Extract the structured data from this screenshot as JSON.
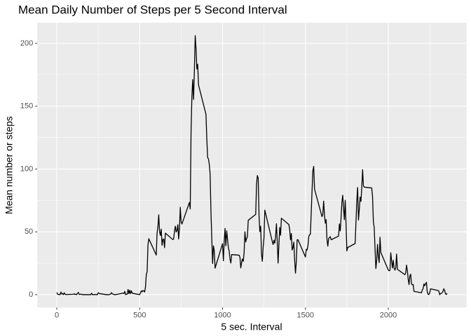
{
  "chart_data": {
    "type": "line",
    "title": "Mean Daily Number of Steps per 5 Second Interval",
    "xlabel": "5 sec. Interval",
    "ylabel": "Mean number or steps",
    "xlim": [
      -117.75,
      2472.75
    ],
    "xticks": [
      0,
      500,
      1000,
      1500,
      2000
    ],
    "ylim": [
      -10.3,
      216.5
    ],
    "yticks": [
      0,
      50,
      100,
      150,
      200
    ],
    "grid": true,
    "x": [
      0,
      5,
      10,
      15,
      20,
      25,
      30,
      35,
      40,
      45,
      50,
      55,
      100,
      105,
      110,
      115,
      120,
      125,
      130,
      135,
      140,
      145,
      150,
      155,
      200,
      205,
      210,
      215,
      220,
      225,
      230,
      235,
      240,
      245,
      250,
      255,
      300,
      305,
      310,
      315,
      320,
      325,
      330,
      335,
      340,
      345,
      350,
      355,
      400,
      405,
      410,
      415,
      420,
      425,
      430,
      435,
      440,
      445,
      450,
      455,
      500,
      505,
      510,
      515,
      520,
      525,
      530,
      535,
      540,
      545,
      550,
      555,
      600,
      605,
      610,
      615,
      620,
      625,
      630,
      635,
      640,
      645,
      650,
      655,
      700,
      705,
      710,
      715,
      720,
      725,
      730,
      735,
      740,
      745,
      750,
      755,
      800,
      805,
      810,
      815,
      820,
      825,
      830,
      835,
      840,
      845,
      850,
      855,
      900,
      905,
      910,
      915,
      920,
      925,
      930,
      935,
      940,
      945,
      950,
      955,
      1000,
      1005,
      1010,
      1015,
      1020,
      1025,
      1030,
      1035,
      1040,
      1045,
      1050,
      1055,
      1100,
      1105,
      1110,
      1115,
      1120,
      1125,
      1130,
      1135,
      1140,
      1145,
      1150,
      1155,
      1200,
      1205,
      1210,
      1215,
      1220,
      1225,
      1230,
      1235,
      1240,
      1245,
      1250,
      1255,
      1300,
      1305,
      1310,
      1315,
      1320,
      1325,
      1330,
      1335,
      1340,
      1345,
      1350,
      1355,
      1400,
      1405,
      1410,
      1415,
      1420,
      1425,
      1430,
      1435,
      1440,
      1445,
      1450,
      1455,
      1500,
      1505,
      1510,
      1515,
      1520,
      1525,
      1530,
      1535,
      1540,
      1545,
      1550,
      1555,
      1600,
      1605,
      1610,
      1615,
      1620,
      1625,
      1630,
      1635,
      1640,
      1645,
      1650,
      1655,
      1700,
      1705,
      1710,
      1715,
      1720,
      1725,
      1730,
      1735,
      1740,
      1745,
      1750,
      1755,
      1800,
      1805,
      1810,
      1815,
      1820,
      1825,
      1830,
      1835,
      1840,
      1845,
      1850,
      1855,
      1900,
      1905,
      1910,
      1915,
      1920,
      1925,
      1930,
      1935,
      1940,
      1945,
      1950,
      1955,
      2000,
      2005,
      2010,
      2015,
      2020,
      2025,
      2030,
      2035,
      2040,
      2045,
      2050,
      2055,
      2100,
      2105,
      2110,
      2115,
      2120,
      2125,
      2130,
      2135,
      2140,
      2145,
      2150,
      2155,
      2200,
      2205,
      2210,
      2215,
      2220,
      2225,
      2230,
      2235,
      2240,
      2245,
      2250,
      2255,
      2300,
      2305,
      2310,
      2315,
      2320,
      2325,
      2330,
      2335,
      2340,
      2345,
      2350,
      2355
    ],
    "series": [
      {
        "color": "#000000",
        "values": [
          1.7,
          0.3,
          0.1,
          0.2,
          0.1,
          2.1,
          0.5,
          0.9,
          0,
          1.5,
          0.3,
          0.1,
          0.3,
          0.7,
          0.2,
          0.3,
          0,
          1.1,
          1.8,
          0.2,
          0.2,
          0.4,
          0.3,
          0,
          0,
          0,
          1.1,
          0,
          0,
          0.1,
          0,
          0.2,
          0,
          0,
          1.5,
          0.9,
          0,
          0,
          0,
          0,
          0.2,
          0.6,
          1.6,
          0.6,
          0.5,
          0.1,
          0,
          0,
          1.2,
          0.9,
          2.6,
          0,
          0.3,
          0.4,
          4.1,
          0.7,
          3.5,
          0.8,
          3.1,
          1.1,
          0,
          1.6,
          3,
          2.2,
          3.3,
          3,
          2.1,
          6.1,
          16,
          18.3,
          39.5,
          44.5,
          31.5,
          49.3,
          53.8,
          63.5,
          50,
          47.1,
          52.2,
          39.3,
          44,
          44.2,
          37.4,
          49,
          43.8,
          44.4,
          50.5,
          54.5,
          49.9,
          51,
          55.7,
          44.3,
          52.3,
          69.5,
          57.8,
          56.2,
          73.4,
          68.2,
          129.4,
          157.5,
          171.2,
          155.4,
          177.3,
          206.2,
          195.9,
          179.6,
          183.4,
          167,
          143.5,
          124,
          109.1,
          108.1,
          103.7,
          95.97,
          66.2,
          45.2,
          24.8,
          38.8,
          35,
          21.1,
          40.6,
          27,
          42.4,
          52.7,
          38.9,
          50.8,
          44.3,
          37.4,
          34.7,
          28.3,
          25.1,
          31.9,
          31.4,
          29.7,
          21.3,
          25.5,
          28.4,
          26.5,
          33.4,
          50,
          42,
          44.6,
          46,
          59.2,
          63.9,
          87.7,
          94.8,
          92.8,
          63.4,
          50.2,
          54.5,
          32.4,
          26.5,
          37.7,
          45.1,
          67.3,
          42.3,
          39.9,
          43.3,
          40.98,
          46.2,
          56.4,
          42.8,
          25.1,
          39.97,
          53.5,
          47.3,
          60.8,
          55.8,
          51.96,
          43.6,
          48.7,
          35.5,
          37.5,
          41.8,
          27.5,
          17.1,
          26.1,
          43.6,
          43.8,
          30,
          36.1,
          35.5,
          38.8,
          45.96,
          47.8,
          48.1,
          65.3,
          82.9,
          98.7,
          102.1,
          83.96,
          62.1,
          64.1,
          74.5,
          63.2,
          56.9,
          59.8,
          43.9,
          38.6,
          44.7,
          45.5,
          46.2,
          43.7,
          46.6,
          56.3,
          50.7,
          61.2,
          73.4,
          79.1,
          68.9,
          59.7,
          75.1,
          56.5,
          34.8,
          37.5,
          40.7,
          58,
          74.7,
          85.3,
          59.3,
          67.8,
          77.7,
          74.2,
          85.3,
          99.5,
          86.6,
          85.6,
          84.9,
          77.8,
          58,
          53.4,
          36.3,
          20.7,
          27.4,
          40,
          30.2,
          25.5,
          45.7,
          33.5,
          19.6,
          19,
          19.3,
          33.3,
          26.8,
          21.2,
          27.3,
          21.3,
          19.5,
          21.3,
          32.3,
          20.2,
          15.9,
          17.2,
          23.5,
          19.2,
          12.5,
          8,
          14.7,
          16.3,
          8.7,
          7.8,
          8.1,
          2.6,
          1.5,
          3.7,
          4.8,
          8.5,
          7.1,
          8.7,
          9.8,
          2.2,
          0.3,
          0.1,
          1.6,
          4.6,
          3.3,
          2.8,
          0,
          0.8,
          1,
          1.6,
          2.6,
          4.7,
          3.3,
          0.6,
          0.2,
          1.1
        ]
      }
    ]
  }
}
